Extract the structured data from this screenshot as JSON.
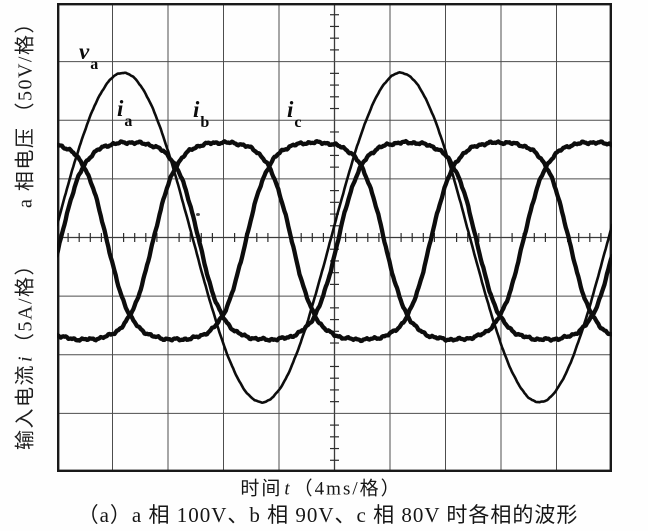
{
  "figure": {
    "caption": "（a）a 相 100V、b 相 90V、c 相 80V 时各相的波形",
    "xlabel": {
      "pre": "时间",
      "var": "t",
      "post": "（4ms/格）"
    },
    "ylabel_voltage": {
      "pre": "a 相电压",
      "var": "",
      "post": "（50V/格）"
    },
    "ylabel_current": {
      "pre": "输入电流",
      "var": "i",
      "post": "（5A/格）"
    }
  },
  "chart_data": {
    "type": "line",
    "subtype": "oscilloscope",
    "title": "",
    "xlabel": "时间 t（4ms/格）",
    "x_axis": {
      "per_division": "4ms",
      "divisions": 10
    },
    "y_axis_voltage": {
      "label": "a 相电压（50V/格）",
      "per_division": "50V",
      "divisions": 8
    },
    "y_axis_current": {
      "label": "输入电流 i（5A/格）",
      "per_division": "5A",
      "divisions": 8
    },
    "minor_ticks_per_division": 5,
    "grid": "on",
    "waveform_period_divisions": 5,
    "waveform_period_ms": 20,
    "waveform_frequency_hz": 50,
    "series": [
      {
        "name": "va",
        "label_main": "v",
        "label_sub": "a",
        "description": "a相电压 phase-a voltage, 100V RMS",
        "kind": "sine",
        "amplitude_div": 2.81,
        "peak_at_div": 1.19,
        "period_div": 5.0,
        "center_offset_div": 0,
        "approx_peak": "≈140V peak (100V RMS)",
        "stroke_width": 2.6,
        "noise": 0.5,
        "saturation": 0
      },
      {
        "name": "ia",
        "label_main": "i",
        "label_sub": "a",
        "description": "a相输入电流 phase-a input current",
        "kind": "flattened-sine",
        "amplitude_div": 1.68,
        "peak_at_div": 1.31,
        "period_div": 5.0,
        "center_offset_div": 0.06,
        "approx_peak": "≈8.4A peak",
        "stroke_width": 4.3,
        "noise": 1.5,
        "saturation": 1.8
      },
      {
        "name": "ib",
        "label_main": "i",
        "label_sub": "b",
        "description": "b相输入电流 phase-b input current",
        "kind": "flattened-sine",
        "amplitude_div": 1.68,
        "peak_at_div": 2.98,
        "period_div": 5.0,
        "center_offset_div": 0.06,
        "approx_peak": "≈8.4A peak",
        "stroke_width": 4.3,
        "noise": 1.5,
        "saturation": 1.8
      },
      {
        "name": "ic",
        "label_main": "i",
        "label_sub": "c",
        "description": "c相输入电流 phase-c input current",
        "kind": "flattened-sine",
        "amplitude_div": 1.68,
        "peak_at_div": 4.65,
        "period_div": 5.0,
        "center_offset_div": 0.06,
        "approx_peak": "≈8.4A peak",
        "stroke_width": 4.3,
        "noise": 1.5,
        "saturation": 1.8
      }
    ]
  }
}
